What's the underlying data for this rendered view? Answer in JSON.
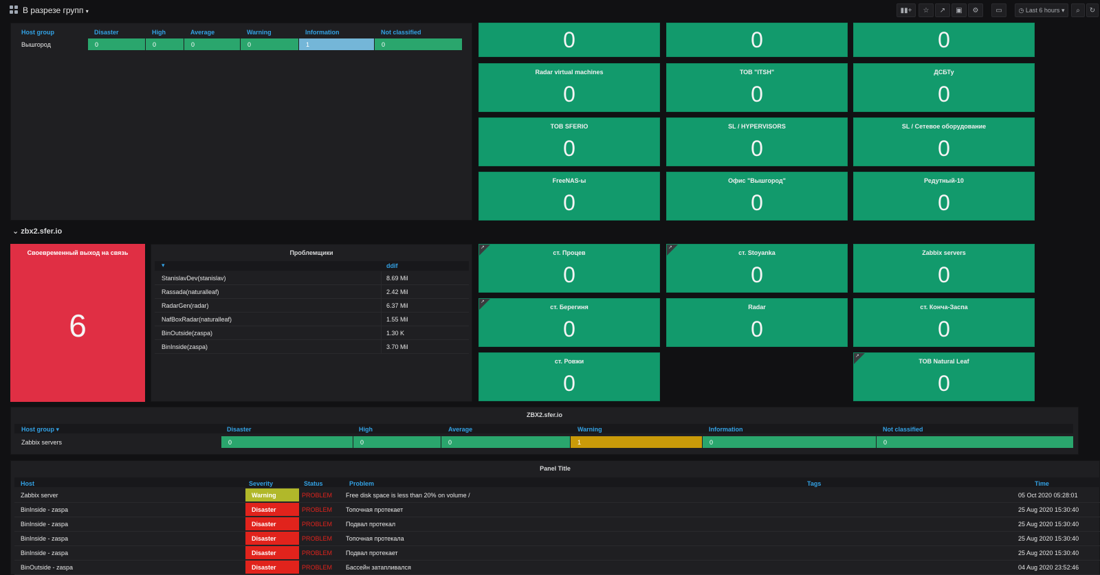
{
  "topbar": {
    "title": "В разрезе групп",
    "time_range": "Last 6 hours",
    "icons": [
      "add-panel-icon",
      "star-icon",
      "share-icon",
      "save-icon",
      "gear-icon",
      "tv-icon",
      "clock-icon",
      "zoom-out-icon",
      "refresh-icon"
    ]
  },
  "groups_table": {
    "headers": [
      "Host group",
      "Disaster",
      "High",
      "Average",
      "Warning",
      "Information",
      "Not classified"
    ],
    "row": {
      "name": "Вышгород",
      "values": [
        "0",
        "0",
        "0",
        "0",
        "1",
        "0"
      ]
    }
  },
  "stats_top": [
    {
      "title": "",
      "value": "0"
    },
    {
      "title": "",
      "value": "0"
    },
    {
      "title": "",
      "value": "0"
    },
    {
      "title": "Radar virtual machines",
      "value": "0"
    },
    {
      "title": "ТОВ \"ITSH\"",
      "value": "0"
    },
    {
      "title": "ДСБТу",
      "value": "0"
    },
    {
      "title": "ТОВ SFERIO",
      "value": "0"
    },
    {
      "title": "SL / HYPERVISORS",
      "value": "0"
    },
    {
      "title": "SL / Сетевое оборудование",
      "value": "0"
    },
    {
      "title": "FreeNAS-ы",
      "value": "0"
    },
    {
      "title": "Офис \"Вышгород\"",
      "value": "0"
    },
    {
      "title": "Редутный-10",
      "value": "0"
    }
  ],
  "row_header": {
    "title": "zbx2.sfer.io"
  },
  "red_stat": {
    "title": "Своевременный выход на связь",
    "value": "6",
    "color": "#e02f44"
  },
  "problem_table": {
    "title": "Проблемщики",
    "col_name": "",
    "col_value": "ddif",
    "rows": [
      {
        "name": "StanislavDev(stanislav)",
        "value": "8.69 Mil"
      },
      {
        "name": "Rassada(naturalleaf)",
        "value": "2.42 Mil"
      },
      {
        "name": "RadarGen(radar)",
        "value": "6.37 Mil"
      },
      {
        "name": "NafBoxRadar(naturalleaf)",
        "value": "1.55 Mil"
      },
      {
        "name": "BinOutside(zaspa)",
        "value": "1.30 K"
      },
      {
        "name": "BinInside(zaspa)",
        "value": "3.70 Mil"
      }
    ]
  },
  "stats_mid": [
    {
      "title": "ст. Процев",
      "value": "0"
    },
    {
      "title": "ст. Stoyanka",
      "value": "0"
    },
    {
      "title": "Zabbix servers",
      "value": "0"
    },
    {
      "title": "ст. Берегиня",
      "value": "0"
    },
    {
      "title": "Radar",
      "value": "0"
    },
    {
      "title": "ст. Конча-Заспа",
      "value": "0"
    },
    {
      "title": "ст. Ровжи",
      "value": "0"
    },
    {
      "title": "ТОВ Natural Leaf",
      "value": "0"
    }
  ],
  "zbx2_table": {
    "title": "ZBX2.sfer.io",
    "headers": [
      "Host group",
      "Disaster",
      "High",
      "Average",
      "Warning",
      "Information",
      "Not classified"
    ],
    "row": {
      "name": "Zabbix servers",
      "values": [
        "0",
        "0",
        "0",
        "1",
        "0",
        "0"
      ]
    }
  },
  "problems_panel": {
    "title": "Panel Title",
    "headers": [
      "Host",
      "Severity",
      "Status",
      "Problem",
      "Tags",
      "Time"
    ],
    "rows": [
      {
        "host": "Zabbix server",
        "severity": "Warning",
        "status": "PROBLEM",
        "problem": "Free disk space is less than 20% on volume /",
        "time": "05 Oct 2020 05:28:01"
      },
      {
        "host": "BinInside - zaspa",
        "severity": "Disaster",
        "status": "PROBLEM",
        "problem": "Топочная протекает",
        "time": "25 Aug 2020 15:30:40"
      },
      {
        "host": "BinInside - zaspa",
        "severity": "Disaster",
        "status": "PROBLEM",
        "problem": "Подвал протекал",
        "time": "25 Aug 2020 15:30:40"
      },
      {
        "host": "BinInside - zaspa",
        "severity": "Disaster",
        "status": "PROBLEM",
        "problem": "Топочная протекала",
        "time": "25 Aug 2020 15:30:40"
      },
      {
        "host": "BinInside - zaspa",
        "severity": "Disaster",
        "status": "PROBLEM",
        "problem": "Подвал протекает",
        "time": "25 Aug 2020 15:30:40"
      },
      {
        "host": "BinOutside - zaspa",
        "severity": "Disaster",
        "status": "PROBLEM",
        "problem": "Бассейн затапливался",
        "time": "04 Aug 2020 23:52:46"
      }
    ]
  },
  "colors": {
    "stat_green": "#129a6c",
    "header_blue": "#33a2e5",
    "disaster": "#e1231c",
    "warning": "#b1b82a",
    "problem_text": "#e1231c"
  }
}
